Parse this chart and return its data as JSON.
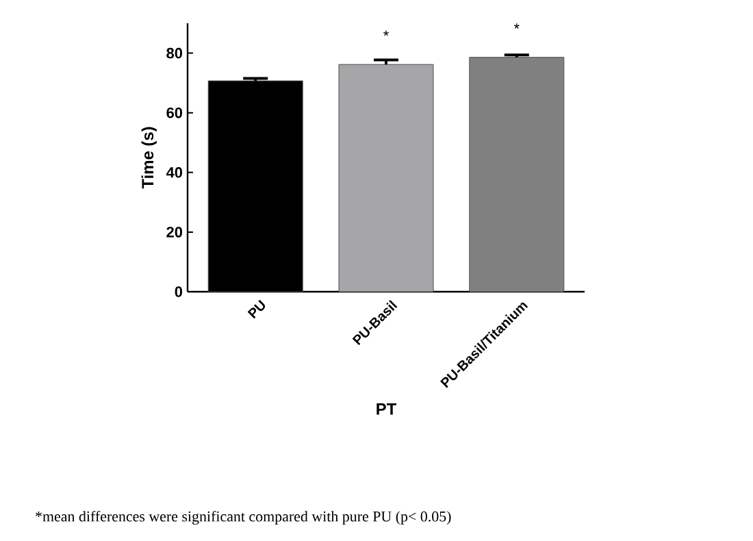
{
  "chart_data": {
    "type": "bar",
    "xlabel": "PT",
    "ylabel": "Time (s)",
    "categories": [
      "PU",
      "PU-Basil",
      "PU-Basil/Titanium"
    ],
    "values": [
      70.7,
      76.2,
      78.6
    ],
    "errors": [
      0.8,
      1.5,
      0.8
    ],
    "colors": [
      "#000000",
      "#a6a6a8",
      "#808080"
    ],
    "ylim": [
      0,
      90
    ],
    "yticks": [
      0,
      20,
      40,
      60,
      80
    ],
    "grid": false,
    "annotations": [
      {
        "text": "*",
        "x": "PU-Basil",
        "y": 76.2
      },
      {
        "text": "*",
        "x": "PU-Basil/Titanium",
        "y": 78.6
      },
      "*mean differences were significant compared with pure PU (p< 0.05)"
    ]
  }
}
